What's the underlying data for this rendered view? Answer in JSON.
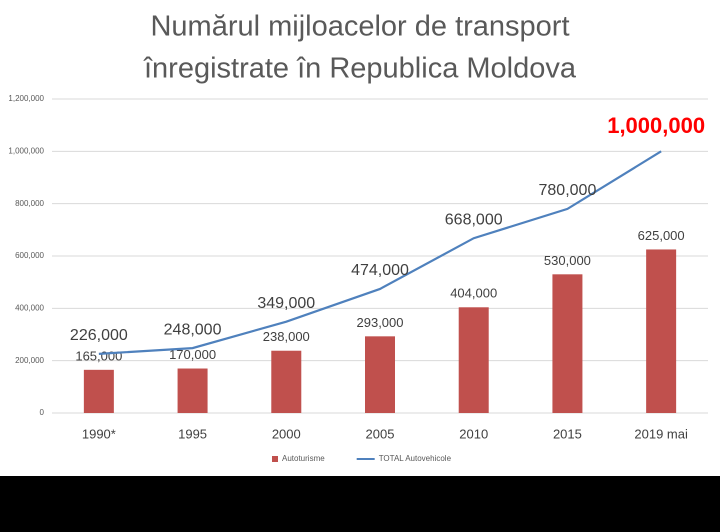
{
  "chart_data": {
    "type": "combo",
    "title": [
      "Numărul mijloacelor de transport",
      "înregistrate în Republica Moldova"
    ],
    "categories": [
      "1990*",
      "1995",
      "2000",
      "2005",
      "2010",
      "2015",
      "2019 mai"
    ],
    "series": [
      {
        "name": "Autoturisme",
        "type": "bar",
        "color": "#c0504d",
        "values": [
          165000,
          170000,
          238000,
          293000,
          404000,
          530000,
          625000
        ],
        "value_labels": [
          "165,000",
          "170,000",
          "238,000",
          "293,000",
          "404,000",
          "530,000",
          "625,000"
        ]
      },
      {
        "name": "TOTAL Autovehicole",
        "type": "line",
        "color": "#4f81bd",
        "values": [
          226000,
          248000,
          349000,
          474000,
          668000,
          780000,
          1000000
        ],
        "value_labels": [
          "226,000",
          "248,000",
          "349,000",
          "474,000",
          "668,000",
          "780,000",
          "1,000,000"
        ],
        "highlight": {
          "index": 6,
          "color": "#ff0000"
        }
      }
    ],
    "ylim": [
      0,
      1200000
    ],
    "yticks": [
      0,
      {
        "value": 200000,
        "label": "200,000"
      },
      {
        "value": 400000,
        "label": "400,000"
      },
      {
        "value": 600000,
        "label": "600,000"
      },
      {
        "value": 800000,
        "label": "800,000"
      },
      {
        "value": 1000000,
        "label": "1,000,000"
      },
      {
        "value": 1200000,
        "label": "1,200,000"
      }
    ],
    "grid": true,
    "legend": "bottom"
  }
}
